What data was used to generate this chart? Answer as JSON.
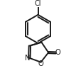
{
  "background_color": "#ffffff",
  "line_color": "#1a1a1a",
  "line_width": 1.4,
  "figsize": [
    1.07,
    1.1
  ],
  "dpi": 100,
  "xlim": [
    0.08,
    0.92
  ],
  "ylim": [
    0.04,
    0.98
  ]
}
